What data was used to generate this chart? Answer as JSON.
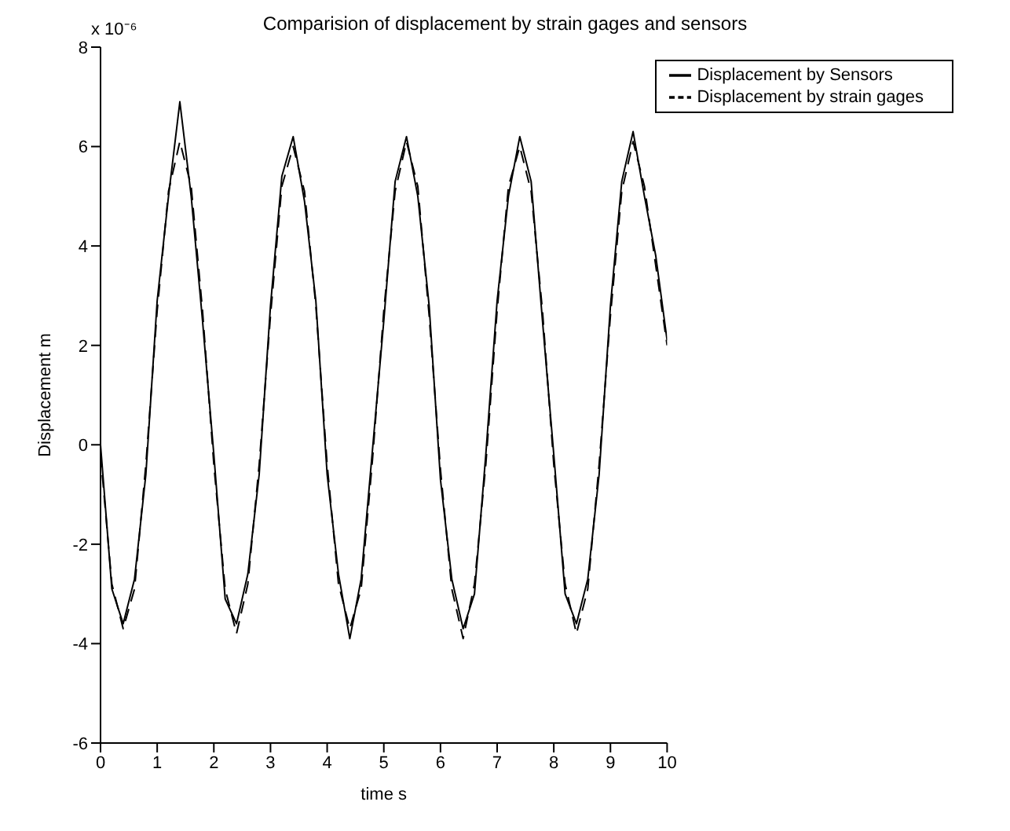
{
  "chart_data": {
    "type": "line",
    "title": "Comparision of displacement by strain gages and sensors",
    "xlabel": "time s",
    "ylabel": "Displacement m",
    "annotations": [
      "x 10⁻⁶"
    ],
    "x": [
      0,
      0.2,
      0.4,
      0.6,
      0.8,
      1,
      1.2,
      1.4,
      1.6,
      1.8,
      2,
      2.2,
      2.4,
      2.6,
      2.8,
      3,
      3.2,
      3.4,
      3.6,
      3.8,
      4,
      4.2,
      4.4,
      4.6,
      4.8,
      5,
      5.2,
      5.4,
      5.6,
      5.8,
      6,
      6.2,
      6.4,
      6.6,
      6.8,
      7,
      7.2,
      7.4,
      7.6,
      7.8,
      8,
      8.2,
      8.4,
      8.6,
      8.8,
      9,
      9.2,
      9.4,
      9.6,
      9.8,
      10
    ],
    "series": [
      {
        "name": "Displacement by strain gages",
        "color": "#000000",
        "line_style": "dashed",
        "values": [
          -0.2,
          -2.8,
          -3.7,
          -2.9,
          -0.4,
          2.7,
          5.1,
          6.1,
          5.2,
          2.7,
          -0.4,
          -2.9,
          -3.8,
          -2.8,
          -0.4,
          2.6,
          5.2,
          6.0,
          5.1,
          2.8,
          -0.4,
          -2.8,
          -3.7,
          -2.9,
          -0.3,
          2.7,
          5.1,
          6.1,
          5.2,
          2.6,
          -0.5,
          -2.9,
          -3.9,
          -2.8,
          -0.4,
          2.7,
          5.2,
          6.0,
          5.1,
          2.7,
          -0.4,
          -2.8,
          -3.8,
          -2.9,
          -0.4,
          2.6,
          5.1,
          6.1,
          5.2,
          3.6,
          2.0
        ]
      },
      {
        "name": "Displacement by Sensors",
        "color": "#000000",
        "line_style": "solid",
        "values": [
          0,
          -2.9,
          -3.6,
          -2.7,
          -0.6,
          2.9,
          5.0,
          6.9,
          5.0,
          2.5,
          -0.2,
          -3.1,
          -3.6,
          -2.6,
          -0.6,
          2.8,
          5.4,
          6.2,
          4.9,
          2.9,
          -0.6,
          -2.6,
          -3.9,
          -2.7,
          -0.1,
          2.5,
          5.3,
          6.2,
          5.0,
          2.8,
          -0.7,
          -2.7,
          -3.7,
          -3.0,
          -0.2,
          2.9,
          5.0,
          6.2,
          5.3,
          2.5,
          -0.2,
          -3.0,
          -3.6,
          -2.7,
          -0.6,
          2.8,
          5.3,
          6.3,
          5.0,
          3.8,
          2.1
        ]
      }
    ],
    "xlim": [
      0,
      10
    ],
    "xticks": [
      0,
      1,
      2,
      3,
      4,
      5,
      6,
      7,
      8,
      9,
      10
    ],
    "ylim": [
      -6,
      8
    ],
    "yticks": [
      -6,
      -4,
      -2,
      0,
      2,
      4,
      6,
      8
    ],
    "legend": "top right",
    "marker": "none"
  }
}
